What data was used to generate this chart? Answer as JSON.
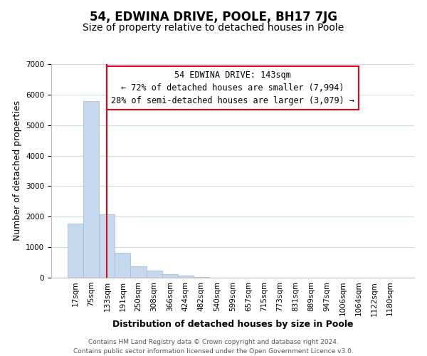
{
  "title": "54, EDWINA DRIVE, POOLE, BH17 7JG",
  "subtitle": "Size of property relative to detached houses in Poole",
  "xlabel": "Distribution of detached houses by size in Poole",
  "ylabel": "Number of detached properties",
  "bar_labels": [
    "17sqm",
    "75sqm",
    "133sqm",
    "191sqm",
    "250sqm",
    "308sqm",
    "366sqm",
    "424sqm",
    "482sqm",
    "540sqm",
    "599sqm",
    "657sqm",
    "715sqm",
    "773sqm",
    "831sqm",
    "889sqm",
    "947sqm",
    "1006sqm",
    "1064sqm",
    "1122sqm",
    "1180sqm"
  ],
  "bar_values": [
    1780,
    5780,
    2080,
    810,
    370,
    230,
    110,
    60,
    30,
    10,
    5,
    0,
    0,
    0,
    0,
    0,
    0,
    0,
    0,
    0,
    0
  ],
  "bar_color": "#c5d8ed",
  "bar_edge_color": "#a0b8d0",
  "highlight_bar_index": 2,
  "highlight_color": "#e8001c",
  "annotation_title": "54 EDWINA DRIVE: 143sqm",
  "annotation_line1": "← 72% of detached houses are smaller (7,994)",
  "annotation_line2": "28% of semi-detached houses are larger (3,079) →",
  "annotation_box_color": "#ffffff",
  "annotation_box_edge": "#e8001c",
  "ylim": [
    0,
    7000
  ],
  "yticks": [
    0,
    1000,
    2000,
    3000,
    4000,
    5000,
    6000,
    7000
  ],
  "footer_line1": "Contains HM Land Registry data © Crown copyright and database right 2024.",
  "footer_line2": "Contains public sector information licensed under the Open Government Licence v3.0.",
  "bg_color": "#ffffff",
  "grid_color": "#d0dce8",
  "title_fontsize": 12,
  "subtitle_fontsize": 10,
  "axis_label_fontsize": 9,
  "tick_fontsize": 7.5,
  "annotation_fontsize": 8.5,
  "footer_fontsize": 6.5
}
